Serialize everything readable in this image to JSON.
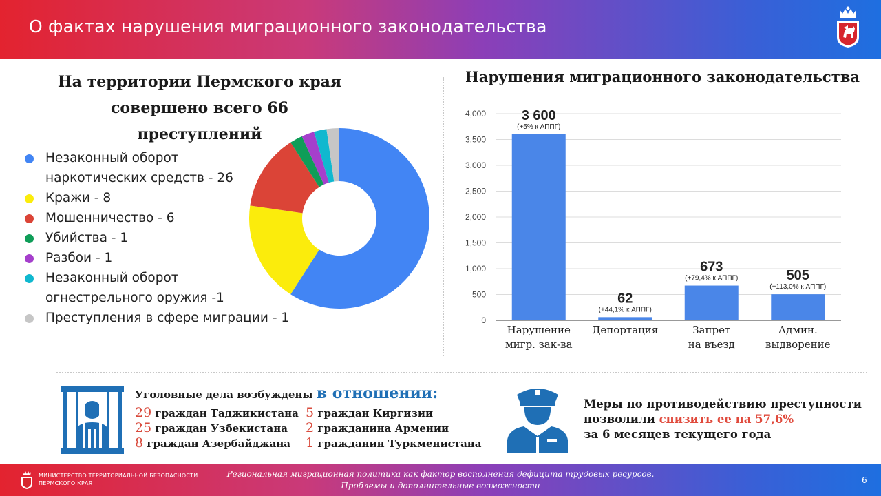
{
  "header": {
    "title": "О фактах нарушения миграционного законодательства"
  },
  "left": {
    "title_line1": "На территории Пермского края",
    "title_line2": "совершено всего 66 преступлений",
    "legend": [
      {
        "label": "Незаконный оборот",
        "label2": "наркотических средств - 26",
        "color": "#4285f4"
      },
      {
        "label": "Кражи - 8",
        "color": "#fbec0c"
      },
      {
        "label": "Мошенничество - 6",
        "color": "#db4437"
      },
      {
        "label": "Убийства - 1",
        "color": "#0f9d58"
      },
      {
        "label": "Разбои - 1",
        "color": "#a53fcc"
      },
      {
        "label": "Незаконный оборот",
        "label2": "огнестрельного оружия -1",
        "color": "#10b8cf"
      },
      {
        "label": "Преступления в сфере миграции - 1",
        "color": "#c6c6c6"
      }
    ]
  },
  "chart_data": [
    {
      "type": "pie",
      "title": "",
      "categories": [
        "Незаконный оборот наркотических средств",
        "Кражи",
        "Мошенничество",
        "Убийства",
        "Разбои",
        "Незаконный оборот огнестрельного оружия",
        "Преступления в сфере миграции"
      ],
      "values": [
        26,
        8,
        6,
        1,
        1,
        1,
        1
      ],
      "colors": [
        "#4285f4",
        "#fbec0c",
        "#db4437",
        "#0f9d58",
        "#a53fcc",
        "#10b8cf",
        "#c6c6c6"
      ]
    },
    {
      "type": "bar",
      "title": "Нарушения миграционного законодательства",
      "categories": [
        [
          "Нарушение",
          "мигр. зак-ва"
        ],
        [
          "Депортация"
        ],
        [
          "Запрет",
          "на въезд"
        ],
        [
          "Админ.",
          "выдворение"
        ]
      ],
      "values": [
        3600,
        62,
        673,
        505
      ],
      "value_labels": [
        "3 600",
        "62",
        "673",
        "505"
      ],
      "notes": [
        "(+5% к АППГ)",
        "(+44,1% к АППГ)",
        "(+79,4% к АППГ)",
        "(+113,0% к АППГ)"
      ],
      "yticks": [
        "0",
        "500",
        "1,000",
        "1,500",
        "2,000",
        "2,500",
        "3,000",
        "3,500",
        "4,000"
      ],
      "ylim": [
        0,
        4000
      ],
      "grid": true,
      "bar_color": "#4a86e8"
    }
  ],
  "cases": {
    "title": "Уголовные дела возбуждены ",
    "title_emph": "в отношении:",
    "col1": [
      {
        "num": "29",
        "text": " граждан Таджикистана"
      },
      {
        "num": "25",
        "text": " граждан Узбекистана"
      },
      {
        "num": "8",
        "text": " граждан Азербайджана"
      }
    ],
    "col2": [
      {
        "num": "5",
        "text": " граждан Киргизии"
      },
      {
        "num": "2",
        "text": " гражданина Армении"
      },
      {
        "num": "1",
        "text": " гражданин Туркменистана"
      }
    ]
  },
  "measures": {
    "line1": "Меры по противодействию преступности",
    "line2_a": "позволили ",
    "line2_b": "снизить ее на 57,6%",
    "line3": "за 6 месяцев текущего года"
  },
  "footer": {
    "org_line1": "МИНИСТЕРСТВО ТЕРРИТОРИАЛЬНОЙ БЕЗОПАСНОСТИ",
    "org_line2": "ПЕРМСКОГО КРАЯ",
    "center_line1": "Региональная миграционная политика как фактор восполнения дефицита трудовых ресурсов.",
    "center_line2": "Проблемы и дополнительные возможности",
    "page": "6"
  }
}
